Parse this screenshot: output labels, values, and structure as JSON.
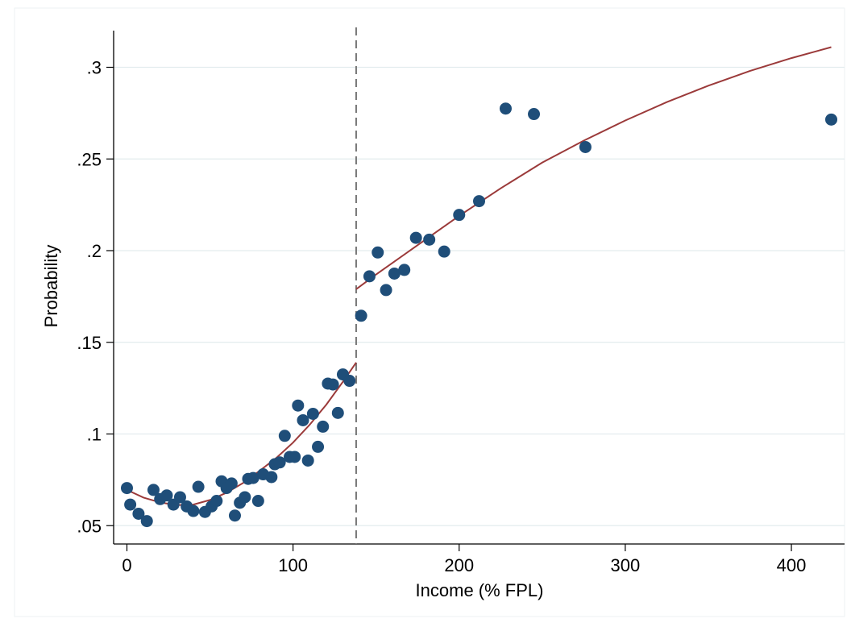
{
  "chart_data": {
    "type": "scatter",
    "xlabel": "Income (% FPL)",
    "ylabel": "Probability",
    "xlim": [
      -8,
      432
    ],
    "ylim": [
      0.04,
      0.32
    ],
    "xticks": [
      {
        "value": 0,
        "label": "0"
      },
      {
        "value": 100,
        "label": "100"
      },
      {
        "value": 200,
        "label": "200"
      },
      {
        "value": 300,
        "label": "300"
      },
      {
        "value": 400,
        "label": "400"
      }
    ],
    "yticks": [
      {
        "value": 0.05,
        "label": ".05"
      },
      {
        "value": 0.1,
        "label": ".1"
      },
      {
        "value": 0.15,
        "label": ".15"
      },
      {
        "value": 0.2,
        "label": ".2"
      },
      {
        "value": 0.25,
        "label": ".25"
      },
      {
        "value": 0.3,
        "label": ".3"
      }
    ],
    "grid": "horizontal",
    "cutoff_x": 138,
    "colors": {
      "points": "#1f4e79",
      "fit": "#9b3a3a",
      "cutoff": "#777777",
      "grid": "#e3ecee"
    },
    "points": [
      {
        "x": 0,
        "y": 0.0705
      },
      {
        "x": 2,
        "y": 0.0615
      },
      {
        "x": 7,
        "y": 0.0565
      },
      {
        "x": 12,
        "y": 0.0525
      },
      {
        "x": 16,
        "y": 0.0695
      },
      {
        "x": 20,
        "y": 0.0645
      },
      {
        "x": 24,
        "y": 0.0665
      },
      {
        "x": 28,
        "y": 0.0615
      },
      {
        "x": 32,
        "y": 0.0655
      },
      {
        "x": 36,
        "y": 0.0605
      },
      {
        "x": 40,
        "y": 0.058
      },
      {
        "x": 43,
        "y": 0.0712
      },
      {
        "x": 47,
        "y": 0.0575
      },
      {
        "x": 51,
        "y": 0.0605
      },
      {
        "x": 54,
        "y": 0.0635
      },
      {
        "x": 57,
        "y": 0.0742
      },
      {
        "x": 60,
        "y": 0.0705
      },
      {
        "x": 63,
        "y": 0.073
      },
      {
        "x": 65,
        "y": 0.0555
      },
      {
        "x": 68,
        "y": 0.0625
      },
      {
        "x": 71,
        "y": 0.0655
      },
      {
        "x": 73,
        "y": 0.0755
      },
      {
        "x": 76,
        "y": 0.076
      },
      {
        "x": 79,
        "y": 0.0635
      },
      {
        "x": 82,
        "y": 0.078
      },
      {
        "x": 87,
        "y": 0.0765
      },
      {
        "x": 89,
        "y": 0.0835
      },
      {
        "x": 92,
        "y": 0.0845
      },
      {
        "x": 95,
        "y": 0.099
      },
      {
        "x": 98,
        "y": 0.0875
      },
      {
        "x": 101,
        "y": 0.0875
      },
      {
        "x": 103,
        "y": 0.1155
      },
      {
        "x": 106,
        "y": 0.1075
      },
      {
        "x": 109,
        "y": 0.0855
      },
      {
        "x": 112,
        "y": 0.111
      },
      {
        "x": 115,
        "y": 0.093
      },
      {
        "x": 118,
        "y": 0.104
      },
      {
        "x": 121,
        "y": 0.1275
      },
      {
        "x": 124,
        "y": 0.127
      },
      {
        "x": 127,
        "y": 0.1115
      },
      {
        "x": 130,
        "y": 0.1325
      },
      {
        "x": 134,
        "y": 0.129
      },
      {
        "x": 141,
        "y": 0.1645
      },
      {
        "x": 146,
        "y": 0.186
      },
      {
        "x": 151,
        "y": 0.199
      },
      {
        "x": 156,
        "y": 0.1785
      },
      {
        "x": 161,
        "y": 0.1875
      },
      {
        "x": 167,
        "y": 0.1895
      },
      {
        "x": 174,
        "y": 0.207
      },
      {
        "x": 182,
        "y": 0.206
      },
      {
        "x": 191,
        "y": 0.1995
      },
      {
        "x": 200,
        "y": 0.2195
      },
      {
        "x": 212,
        "y": 0.227
      },
      {
        "x": 228,
        "y": 0.2775
      },
      {
        "x": 245,
        "y": 0.2745
      },
      {
        "x": 276,
        "y": 0.2565
      },
      {
        "x": 424,
        "y": 0.2715
      }
    ],
    "fit_left": [
      {
        "x": 0,
        "y": 0.0695
      },
      {
        "x": 10,
        "y": 0.0653
      },
      {
        "x": 20,
        "y": 0.0627
      },
      {
        "x": 30,
        "y": 0.0612
      },
      {
        "x": 40,
        "y": 0.0615
      },
      {
        "x": 50,
        "y": 0.064
      },
      {
        "x": 60,
        "y": 0.068
      },
      {
        "x": 70,
        "y": 0.0733
      },
      {
        "x": 80,
        "y": 0.08
      },
      {
        "x": 90,
        "y": 0.087
      },
      {
        "x": 100,
        "y": 0.0953
      },
      {
        "x": 110,
        "y": 0.105
      },
      {
        "x": 120,
        "y": 0.116
      },
      {
        "x": 130,
        "y": 0.1285
      },
      {
        "x": 138,
        "y": 0.139
      }
    ],
    "fit_right": [
      {
        "x": 138,
        "y": 0.179
      },
      {
        "x": 150,
        "y": 0.187
      },
      {
        "x": 175,
        "y": 0.203
      },
      {
        "x": 200,
        "y": 0.219
      },
      {
        "x": 225,
        "y": 0.234
      },
      {
        "x": 250,
        "y": 0.248
      },
      {
        "x": 275,
        "y": 0.26
      },
      {
        "x": 300,
        "y": 0.271
      },
      {
        "x": 325,
        "y": 0.281
      },
      {
        "x": 350,
        "y": 0.29
      },
      {
        "x": 375,
        "y": 0.298
      },
      {
        "x": 400,
        "y": 0.305
      },
      {
        "x": 424,
        "y": 0.311
      }
    ]
  }
}
